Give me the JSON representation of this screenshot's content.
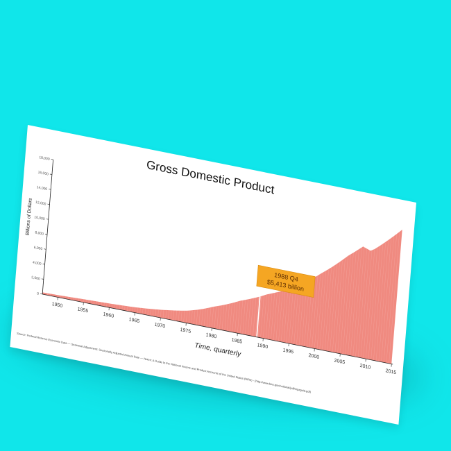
{
  "chart_data": {
    "type": "area",
    "title": "Gross Domestic Product",
    "xlabel": "Time, quarterly",
    "ylabel": "Billions of Dollars",
    "source_note": "Source: Federal Reserve Economic Data — Seasonal Adjustment: Seasonally Adjusted Annual Rate — Notes: A Guide to the National Income and Product Accounts of the United States (NIPA) - (http://www.bea.gov/national/pdf/nipaguid.pdf)",
    "xlim": [
      1947,
      2015.25
    ],
    "ylim": [
      0,
      18000
    ],
    "x_ticks": [
      1950,
      1955,
      1960,
      1965,
      1970,
      1975,
      1980,
      1985,
      1990,
      1995,
      2000,
      2005,
      2010,
      2015
    ],
    "x_tick_labels": [
      "1950",
      "1955",
      "1960",
      "1965",
      "1970",
      "1975",
      "1980",
      "1985",
      "1990",
      "1995",
      "2000",
      "2005",
      "2010",
      "2015"
    ],
    "y_ticks": [
      0,
      2000,
      4000,
      6000,
      8000,
      10000,
      12000,
      14000,
      16000,
      18000
    ],
    "y_tick_labels": [
      "0",
      "2,000",
      "4,000",
      "6,000",
      "8,000",
      "10,000",
      "12,000",
      "14,000",
      "16,000",
      "18,000"
    ],
    "grid": false,
    "series": [
      {
        "name": "",
        "color": "#f08a80",
        "points": [
          [
            1947,
            243
          ],
          [
            1950,
            294
          ],
          [
            1955,
            426
          ],
          [
            1960,
            542
          ],
          [
            1965,
            719
          ],
          [
            1970,
            1073
          ],
          [
            1975,
            1638
          ],
          [
            1980,
            2863
          ],
          [
            1985,
            4339
          ],
          [
            1988.75,
            5413
          ],
          [
            1990,
            5873
          ],
          [
            1995,
            7415
          ],
          [
            2000,
            10002
          ],
          [
            2005,
            13094
          ],
          [
            2007.75,
            14715
          ],
          [
            2009.25,
            14356
          ],
          [
            2010,
            14681
          ],
          [
            2015,
            17970
          ]
        ]
      }
    ],
    "highlight": {
      "x": 1988.75,
      "y": 5413,
      "label_line1": "1988 Q4",
      "label_line2": "$5,413 billion",
      "box_color": "#f5a623",
      "line_color": "#ffffff"
    },
    "area_color": "#f08a80",
    "background": "#ffffff"
  },
  "background_color": "#10e6ea"
}
